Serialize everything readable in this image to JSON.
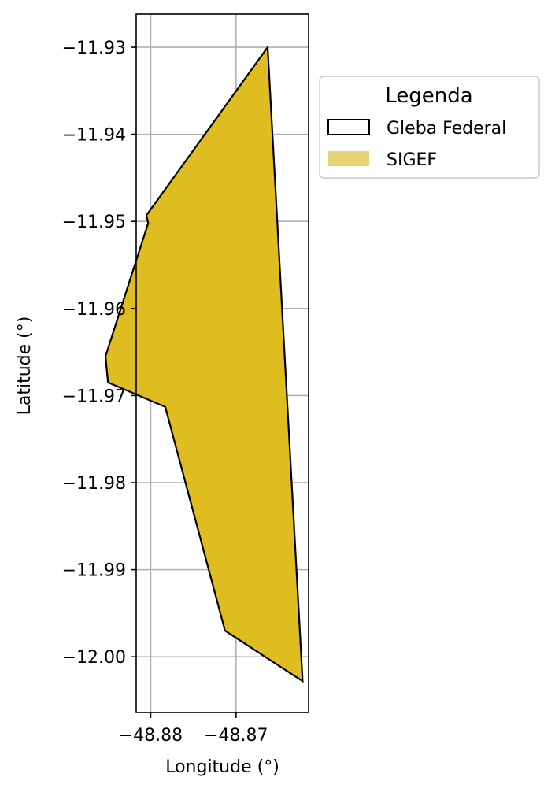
{
  "chart_data": {
    "type": "area",
    "xlabel": "Longitude (°)",
    "ylabel": "Latitude (°)",
    "xlim": [
      -48.8817,
      -48.8615
    ],
    "ylim": [
      -12.0064,
      -11.9262
    ],
    "x_ticks": [
      -48.88,
      -48.87
    ],
    "x_tick_labels": [
      "−48.88",
      "−48.87"
    ],
    "y_ticks": [
      -11.93,
      -11.94,
      -11.95,
      -11.96,
      -11.97,
      -11.98,
      -11.99,
      -12.0
    ],
    "y_tick_labels": [
      "−11.93",
      "−11.94",
      "−11.95",
      "−11.96",
      "−11.97",
      "−11.98",
      "−11.99",
      "−12.00"
    ],
    "grid": true,
    "legend_placement": "outside upper-right",
    "legend": {
      "title": "Legenda",
      "entries": [
        {
          "label": "Gleba Federal",
          "style": "outline",
          "color": "#000000"
        },
        {
          "label": "SIGEF",
          "style": "fill",
          "color": "#e8d375"
        }
      ]
    },
    "series": [
      {
        "name": "SIGEF",
        "fill": "#dfbc1f",
        "stroke": "#000000",
        "points": [
          [
            -48.8663,
            -11.93
          ],
          [
            -48.8805,
            -11.9493
          ],
          [
            -48.8803,
            -11.9502
          ],
          [
            -48.8853,
            -11.9655
          ],
          [
            -48.885,
            -11.9685
          ],
          [
            -48.8783,
            -11.9713
          ],
          [
            -48.8713,
            -11.997
          ],
          [
            -48.8622,
            -12.0028
          ]
        ]
      }
    ]
  }
}
